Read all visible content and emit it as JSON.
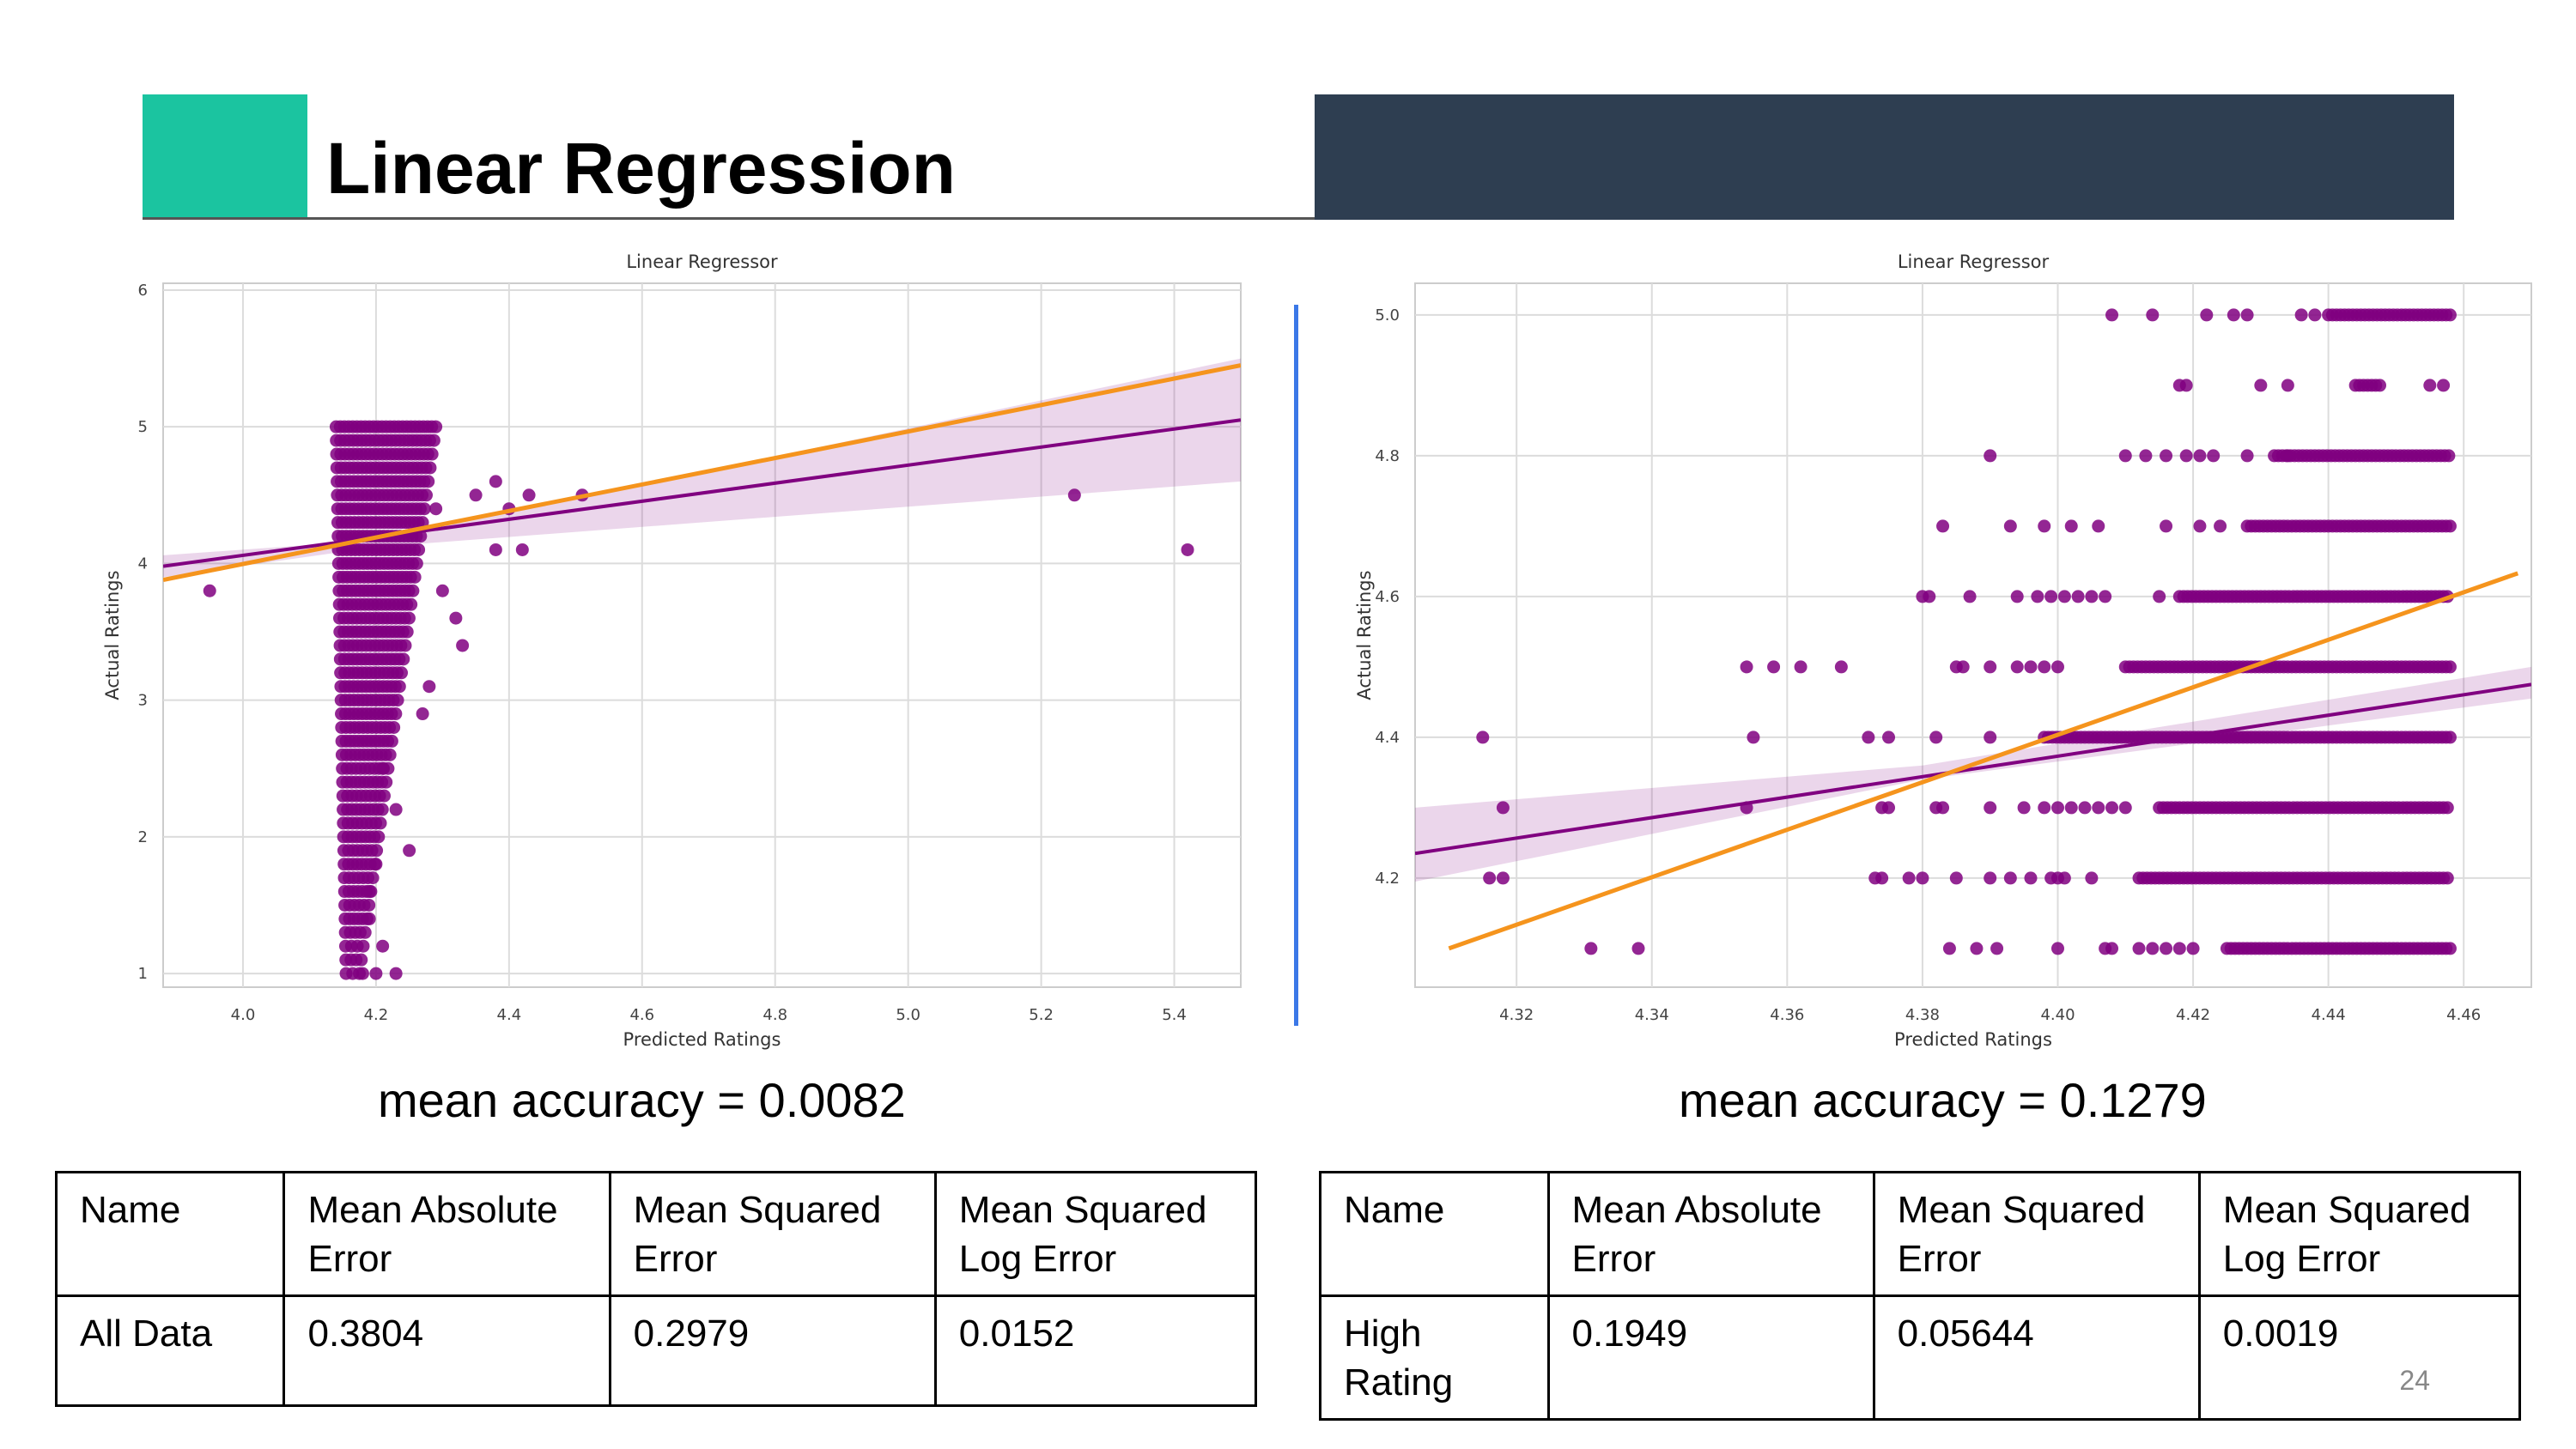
{
  "slide": {
    "title": "Linear Regression",
    "page_number": "24",
    "accent_color": "#1bc4a0",
    "header_dark_color": "#2e3e51",
    "divider_color": "#3b78e7"
  },
  "left": {
    "accuracy_text": "mean accuracy = 0.0082",
    "table": {
      "headers": [
        "Name",
        "Mean Absolute Error",
        "Mean Squared Error",
        "Mean Squared Log Error"
      ],
      "rows": [
        [
          "All Data",
          "0.3804",
          "0.2979",
          "0.0152"
        ]
      ]
    }
  },
  "right": {
    "accuracy_text": "mean accuracy = 0.1279",
    "table": {
      "headers": [
        "Name",
        "Mean Absolute Error",
        "Mean Squared Error",
        "Mean Squared Log Error"
      ],
      "rows": [
        [
          "High Rating",
          "0.1949",
          "0.05644",
          "0.0019"
        ]
      ]
    }
  },
  "chart_data": [
    {
      "type": "scatter",
      "title": "Linear Regressor",
      "xlabel": "Predicted Ratings",
      "ylabel": "Actual Ratings",
      "xlim": [
        3.88,
        5.5
      ],
      "ylim": [
        0.9,
        6.05
      ],
      "x_ticks": [
        4.0,
        4.2,
        4.4,
        4.6,
        4.8,
        5.0,
        5.2,
        5.4
      ],
      "x_tick_labels": [
        "4.0",
        "4.2",
        "4.4",
        "4.6",
        "4.8",
        "5.0",
        "5.2",
        "5.4"
      ],
      "y_ticks": [
        1,
        2,
        3,
        4,
        5,
        6
      ],
      "y_tick_labels": [
        "1",
        "2",
        "3",
        "4",
        "5",
        "6"
      ],
      "grid": true,
      "point_color": "#800080",
      "cluster": {
        "x_range": [
          4.14,
          4.29
        ],
        "y_range": [
          1.0,
          5.0
        ],
        "y_step": 0.1
      },
      "points": [
        [
          3.95,
          3.8
        ],
        [
          4.35,
          4.5
        ],
        [
          4.38,
          4.6
        ],
        [
          4.4,
          4.4
        ],
        [
          4.42,
          4.1
        ],
        [
          4.43,
          4.5
        ],
        [
          4.38,
          4.1
        ],
        [
          4.51,
          4.5
        ],
        [
          5.25,
          4.5
        ],
        [
          5.42,
          4.1
        ],
        [
          4.21,
          2.5
        ],
        [
          4.23,
          2.2
        ],
        [
          4.2,
          1.8
        ],
        [
          4.19,
          1.6
        ],
        [
          4.19,
          1.4
        ],
        [
          4.21,
          1.2
        ],
        [
          4.18,
          1.0
        ],
        [
          4.2,
          1.0
        ],
        [
          4.23,
          1.0
        ],
        [
          4.25,
          1.9
        ],
        [
          4.3,
          3.8
        ],
        [
          4.32,
          3.6
        ],
        [
          4.33,
          3.4
        ],
        [
          4.28,
          3.1
        ],
        [
          4.27,
          2.9
        ],
        [
          4.29,
          4.4
        ]
      ],
      "fit_line": {
        "color": "#800080",
        "points": [
          [
            3.88,
            3.98
          ],
          [
            5.5,
            5.05
          ]
        ],
        "ci_low": [
          [
            3.88,
            3.9
          ],
          [
            4.2,
            4.12
          ],
          [
            5.5,
            4.6
          ]
        ],
        "ci_high": [
          [
            3.88,
            4.06
          ],
          [
            4.2,
            4.17
          ],
          [
            5.5,
            5.5
          ]
        ]
      },
      "ideal_line": {
        "color": "#f5941d",
        "points": [
          [
            3.88,
            3.88
          ],
          [
            5.5,
            5.45
          ]
        ]
      }
    },
    {
      "type": "scatter",
      "title": "Linear Regressor",
      "xlabel": "Predicted Ratings",
      "ylabel": "Actual Ratings",
      "xlim": [
        4.305,
        4.47
      ],
      "ylim": [
        4.045,
        5.045
      ],
      "x_ticks": [
        4.32,
        4.34,
        4.36,
        4.38,
        4.4,
        4.42,
        4.44,
        4.46
      ],
      "x_tick_labels": [
        "4.32",
        "4.34",
        "4.36",
        "4.38",
        "4.40",
        "4.42",
        "4.44",
        "4.46"
      ],
      "y_ticks": [
        4.2,
        4.4,
        4.6,
        4.8,
        5.0
      ],
      "y_tick_labels": [
        "4.2",
        "4.4",
        "4.6",
        "4.8",
        "5.0"
      ],
      "grid": true,
      "point_color": "#800080",
      "rows": [
        {
          "y": 5.0,
          "x_start": 4.44,
          "x_end": 4.458,
          "extra": [
            4.408,
            4.414,
            4.422,
            4.426,
            4.428,
            4.436,
            4.438
          ]
        },
        {
          "y": 4.9,
          "x_start": 4.444,
          "x_end": 4.448,
          "extra": [
            4.418,
            4.419,
            4.43,
            4.434,
            4.455,
            4.457
          ]
        },
        {
          "y": 4.8,
          "x_start": 4.432,
          "x_end": 4.458,
          "extra": [
            4.39,
            4.41,
            4.413,
            4.416,
            4.419,
            4.421,
            4.423,
            4.428,
            4.434
          ]
        },
        {
          "y": 4.7,
          "x_start": 4.428,
          "x_end": 4.458,
          "extra": [
            4.383,
            4.393,
            4.398,
            4.402,
            4.406,
            4.416,
            4.421,
            4.424
          ]
        },
        {
          "y": 4.6,
          "x_start": 4.418,
          "x_end": 4.458,
          "extra": [
            4.38,
            4.381,
            4.387,
            4.394,
            4.397,
            4.399,
            4.401,
            4.403,
            4.405,
            4.407,
            4.415
          ]
        },
        {
          "y": 4.5,
          "x_start": 4.41,
          "x_end": 4.458,
          "extra": [
            4.354,
            4.358,
            4.362,
            4.368,
            4.385,
            4.386,
            4.39,
            4.394,
            4.396,
            4.398,
            4.4
          ]
        },
        {
          "y": 4.4,
          "x_start": 4.398,
          "x_end": 4.458,
          "extra": [
            4.315,
            4.355,
            4.372,
            4.375,
            4.382,
            4.39
          ]
        },
        {
          "y": 4.3,
          "x_start": 4.415,
          "x_end": 4.458,
          "extra": [
            4.318,
            4.354,
            4.374,
            4.375,
            4.382,
            4.383,
            4.39,
            4.395,
            4.398,
            4.4,
            4.402,
            4.404,
            4.406,
            4.408,
            4.41
          ]
        },
        {
          "y": 4.2,
          "x_start": 4.412,
          "x_end": 4.458,
          "extra": [
            4.316,
            4.318,
            4.373,
            4.374,
            4.378,
            4.38,
            4.385,
            4.39,
            4.393,
            4.396,
            4.399,
            4.4,
            4.401,
            4.405
          ]
        },
        {
          "y": 4.1,
          "x_start": 4.425,
          "x_end": 4.458,
          "extra": [
            4.331,
            4.338,
            4.384,
            4.388,
            4.391,
            4.4,
            4.407,
            4.408,
            4.412,
            4.414,
            4.416,
            4.418,
            4.42
          ]
        }
      ],
      "fit_line": {
        "color": "#800080",
        "points": [
          [
            4.305,
            4.235
          ],
          [
            4.47,
            4.475
          ]
        ],
        "ci_low": [
          [
            4.305,
            4.195
          ],
          [
            4.38,
            4.34
          ],
          [
            4.47,
            4.455
          ]
        ],
        "ci_high": [
          [
            4.305,
            4.3
          ],
          [
            4.38,
            4.36
          ],
          [
            4.47,
            4.5
          ]
        ]
      },
      "ideal_line": {
        "color": "#f5941d",
        "points": [
          [
            4.31,
            4.1
          ],
          [
            4.468,
            4.633
          ]
        ]
      }
    }
  ]
}
